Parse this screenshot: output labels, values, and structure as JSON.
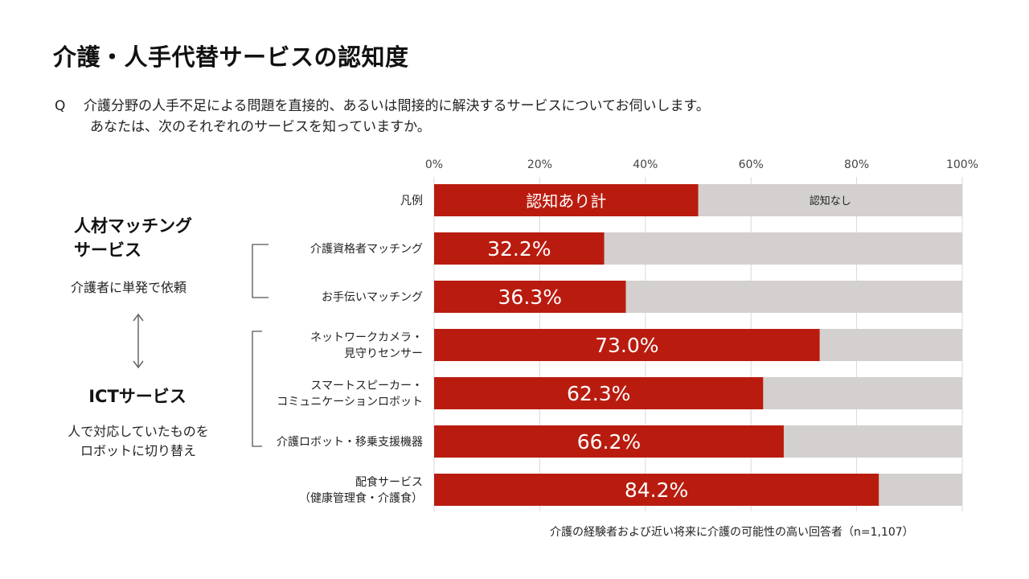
{
  "title": "介護・人手代替サービスの認知度",
  "question": {
    "mark": "Q",
    "line1": "介護分野の人手不足による問題を直接的、あるいは間接的に解決するサービスについてお伺いします。",
    "line2": "あなたは、次のそれぞれのサービスを知っていますか。"
  },
  "left_panel": {
    "group1_title_line1": "人材マッチング",
    "group1_title_line2": "サービス",
    "group1_desc": "介護者に単発で依頼",
    "group2_title": "ICTサービス",
    "group2_desc_line1": "人で対応していたものを",
    "group2_desc_line2": "ロボットに切り替え"
  },
  "colors": {
    "aware": "#b91c0f",
    "unaware": "#d3d0cf",
    "axis_text": "#444444"
  },
  "chart_data": {
    "type": "bar",
    "orientation": "horizontal",
    "stacked": true,
    "xlim": [
      0,
      100
    ],
    "ticks": [
      "0%",
      "20%",
      "40%",
      "60%",
      "80%",
      "100%"
    ],
    "grid": true,
    "legend_row": {
      "label": "凡例",
      "aware_label": "認知あり計",
      "unaware_label": "認知なし",
      "aware_value": 50
    },
    "categories": [
      [
        "介護資格者マッチング"
      ],
      [
        "お手伝いマッチング"
      ],
      [
        "ネットワークカメラ・",
        "見守りセンサー"
      ],
      [
        "スマートスピーカー・",
        "コミュニケーションロボット"
      ],
      [
        "介護ロボット・移乗支援機器"
      ],
      [
        "配食サービス",
        "（健康管理食・介護食）"
      ]
    ],
    "series": [
      {
        "name": "認知あり計",
        "values": [
          32.2,
          36.3,
          73.0,
          62.3,
          66.2,
          84.2
        ]
      },
      {
        "name": "認知なし",
        "values": [
          67.8,
          63.7,
          27.0,
          37.7,
          33.8,
          15.8
        ]
      }
    ],
    "value_labels": [
      "32.2%",
      "36.3%",
      "73.0%",
      "62.3%",
      "66.2%",
      "84.2%"
    ]
  },
  "footnote": "介護の経験者および近い将来に介護の可能性の高い回答者（n=1,107）"
}
